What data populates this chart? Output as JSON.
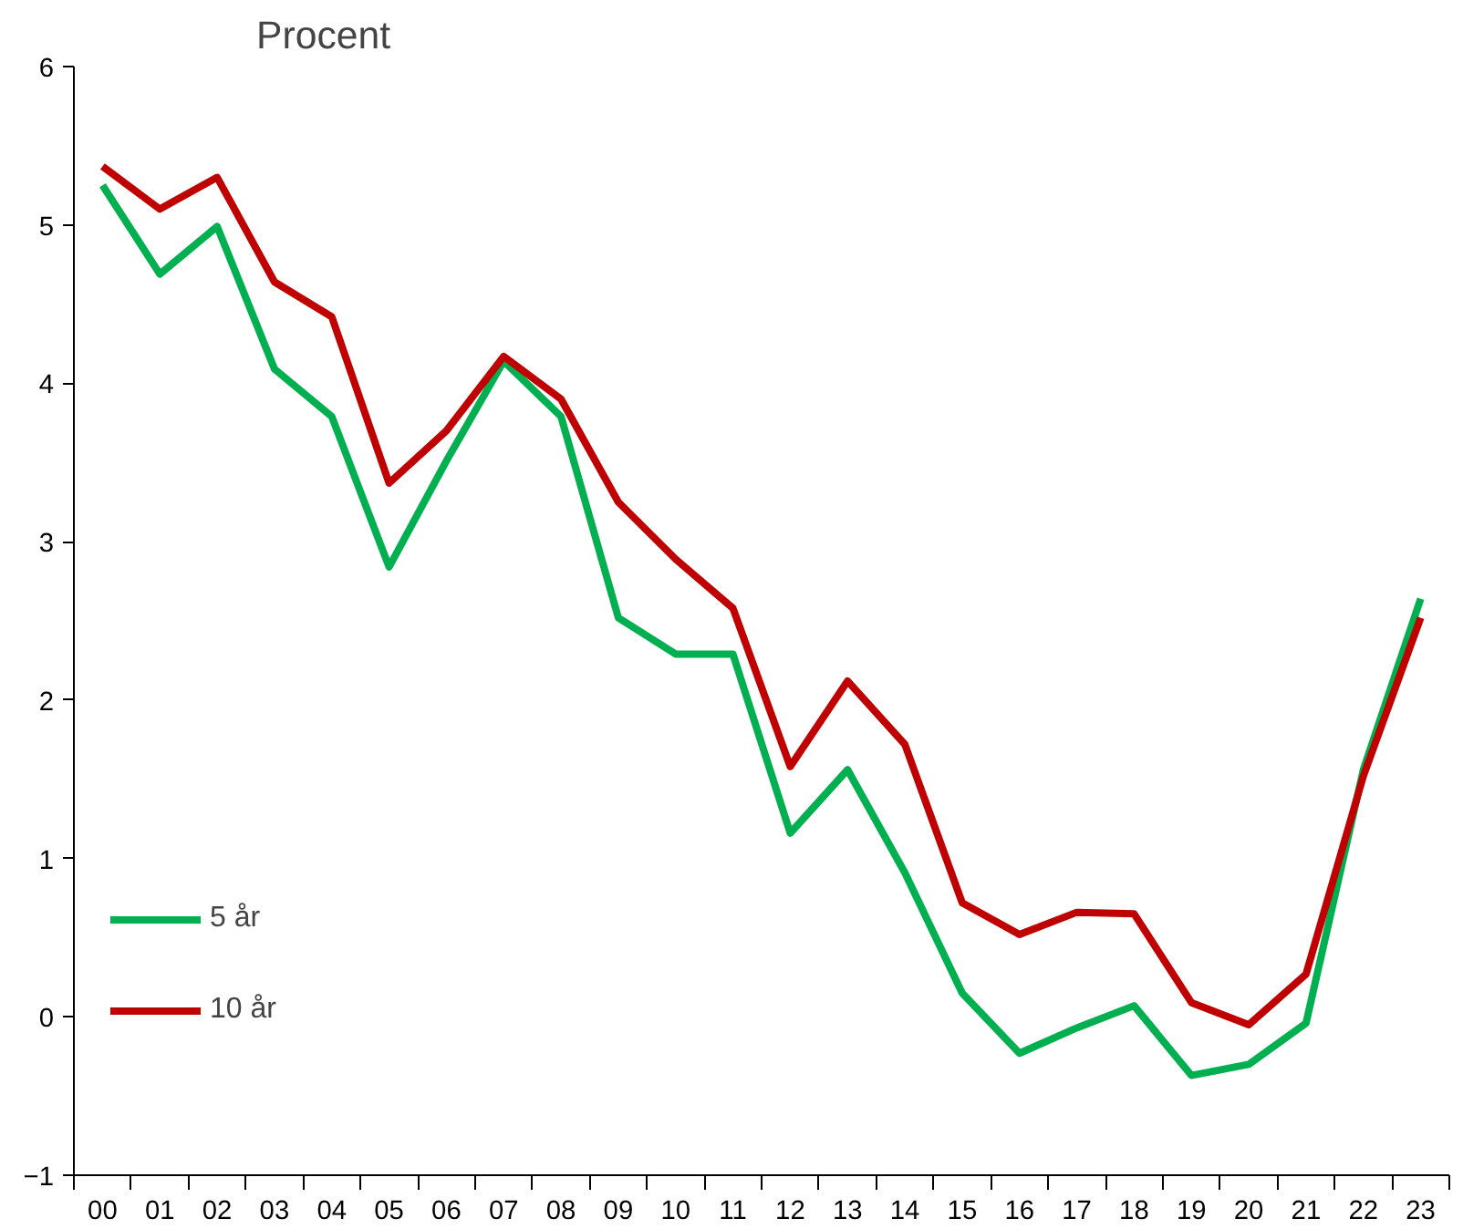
{
  "chart_data": {
    "type": "line",
    "ylabel": "Procent",
    "categories": [
      "00",
      "01",
      "02",
      "03",
      "04",
      "05",
      "06",
      "07",
      "08",
      "09",
      "10",
      "11",
      "12",
      "13",
      "14",
      "15",
      "16",
      "17",
      "18",
      "19",
      "20",
      "21",
      "22",
      "23"
    ],
    "series": [
      {
        "name": "5 år",
        "color": "#00b050",
        "values": [
          5.25,
          4.69,
          4.99,
          4.09,
          3.79,
          2.84,
          3.51,
          4.14,
          3.79,
          2.52,
          2.29,
          2.29,
          1.16,
          1.56,
          0.91,
          0.15,
          -0.23,
          -0.07,
          0.07,
          -0.37,
          -0.3,
          -0.04,
          1.56,
          2.64
        ]
      },
      {
        "name": "10 år",
        "color": "#c00000",
        "values": [
          5.37,
          5.1,
          5.3,
          4.64,
          4.42,
          3.37,
          3.7,
          4.17,
          3.9,
          3.25,
          2.89,
          2.58,
          1.58,
          2.12,
          1.72,
          0.72,
          0.52,
          0.66,
          0.65,
          0.09,
          -0.05,
          0.27,
          1.52,
          2.52
        ]
      }
    ],
    "ylim": [
      -1,
      6
    ],
    "yticks": [
      -1,
      0,
      1,
      2,
      3,
      4,
      5,
      6
    ],
    "grid": false,
    "legend": "bottom left",
    "marker": "none",
    "line_style": "solid"
  }
}
